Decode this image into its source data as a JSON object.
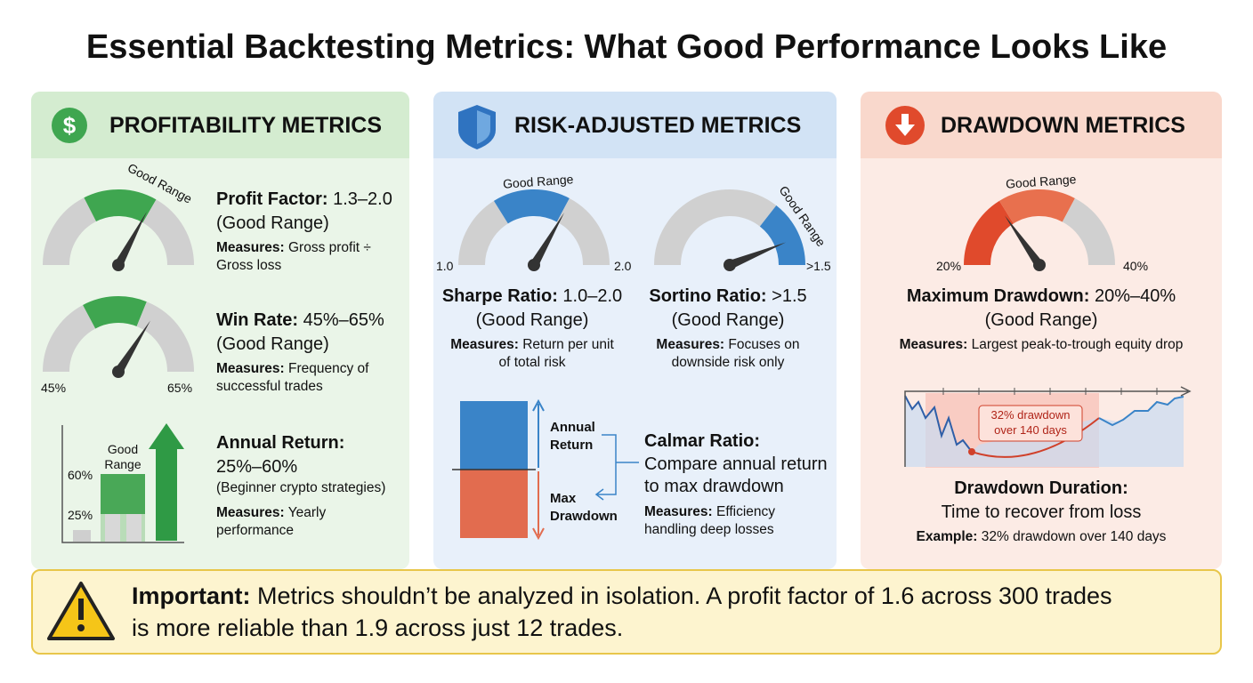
{
  "title": "Essential Backtesting Metrics: What Good Performance Looks Like",
  "panels": [
    {
      "heading": "PROFITABILITY METRICS",
      "metrics": [
        {
          "name": "Profit Factor:",
          "value": "1.3–2.0",
          "note": "(Good Range)",
          "measures_label": "Measures:",
          "measures": "Gross profit ÷ Gross loss",
          "gauge": {
            "label": "Good Range"
          }
        },
        {
          "name": "Win Rate:",
          "value": "45%–65%",
          "note": "(Good Range)",
          "measures_label": "Measures:",
          "measures": "Frequency of successful trades",
          "gauge": {
            "min": "45%",
            "max": "65%"
          }
        },
        {
          "name": "Annual Return:",
          "value": "25%–60%",
          "note": "(Beginner crypto strategies)",
          "measures_label": "Measures:",
          "measures": "Yearly performance",
          "chart": {
            "label": "Good Range",
            "upper": "60%",
            "lower": "25%"
          }
        }
      ]
    },
    {
      "heading": "RISK-ADJUSTED METRICS",
      "metrics": [
        {
          "name": "Sharpe Ratio:",
          "value": "1.0–2.0",
          "note": "(Good Range)",
          "measures_label": "Measures:",
          "measures": "Return per unit of total risk",
          "gauge": {
            "label": "Good Range",
            "min": "1.0",
            "max": "2.0"
          }
        },
        {
          "name": "Sortino Ratio:",
          "value": ">1.5",
          "note": "(Good Range)",
          "measures_label": "Measures:",
          "measures": "Focuses on downside risk only",
          "gauge": {
            "label": "Good Range",
            "max": ">1.5"
          }
        },
        {
          "name": "Calmar Ratio:",
          "value": "Compare annual return to max drawdown",
          "measures_label": "Measures:",
          "measures": "Efficiency handling deep losses",
          "chart": {
            "top_label": "Annual Return",
            "bottom_label": "Max Drawdown"
          }
        }
      ]
    },
    {
      "heading": "DRAWDOWN METRICS",
      "metrics": [
        {
          "name": "Maximum Drawdown:",
          "value": "20%–40%",
          "note": "(Good Range)",
          "measures_label": "Measures:",
          "measures": "Largest peak-to-trough equity drop",
          "gauge": {
            "label": "Good Range",
            "min": "20%",
            "max": "40%"
          }
        },
        {
          "name": "Drawdown Duration:",
          "value": "Time to recover from loss",
          "example_label": "Example:",
          "example": "32% drawdown over 140 days",
          "chart": {
            "label": "32% drawdown over 140 days"
          }
        }
      ]
    }
  ],
  "callout": {
    "label": "Important:",
    "text": "Metrics shouldn’t be analyzed in isolation. A profit factor of 1.6 across 300 trades is more reliable than 1.9 across just 12 trades."
  }
}
